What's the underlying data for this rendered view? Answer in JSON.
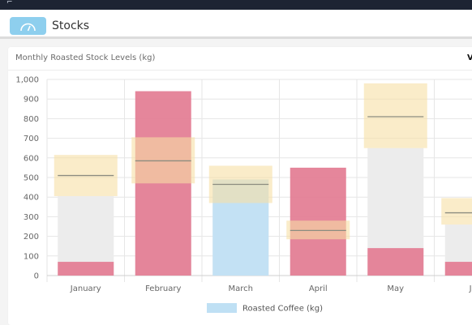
{
  "header": {
    "title": "Stocks",
    "icon": "gauge-icon"
  },
  "card": {
    "title": "Monthly Roasted Stock Levels (kg)",
    "title_overflow": "V"
  },
  "chart_data": {
    "type": "bar",
    "title": "Monthly Roasted Stock Levels (kg)",
    "categories": [
      "January",
      "February",
      "March",
      "April",
      "May",
      "Ju"
    ],
    "ylim": [
      0,
      1000
    ],
    "yticks": [
      "0",
      "100",
      "200",
      "300",
      "400",
      "500",
      "600",
      "700",
      "800",
      "900",
      "1,000"
    ],
    "grid": true,
    "legend": {
      "position": "bottom",
      "label": "Roasted Coffee (kg)",
      "color": "#bfe0f4"
    },
    "stock": [
      70,
      940,
      490,
      550,
      140,
      70
    ],
    "stock_colors": [
      "#e37c92",
      "#e37c92",
      "#bfe0f4",
      "#e37c92",
      "#e37c92",
      "#e37c92"
    ],
    "target_range": [
      [
        405,
        615
      ],
      [
        470,
        705
      ],
      [
        370,
        560
      ],
      [
        185,
        280
      ],
      [
        650,
        980
      ],
      [
        260,
        395
      ]
    ],
    "target": [
      510,
      585,
      465,
      230,
      810,
      320
    ],
    "background_bar": [
      405,
      470,
      370,
      185,
      650,
      260
    ],
    "colors": {
      "band": "#f6dfa5",
      "background_bar": "#ececec",
      "target_line": "#8c8c80",
      "gridline": "#e6e6e6"
    }
  }
}
